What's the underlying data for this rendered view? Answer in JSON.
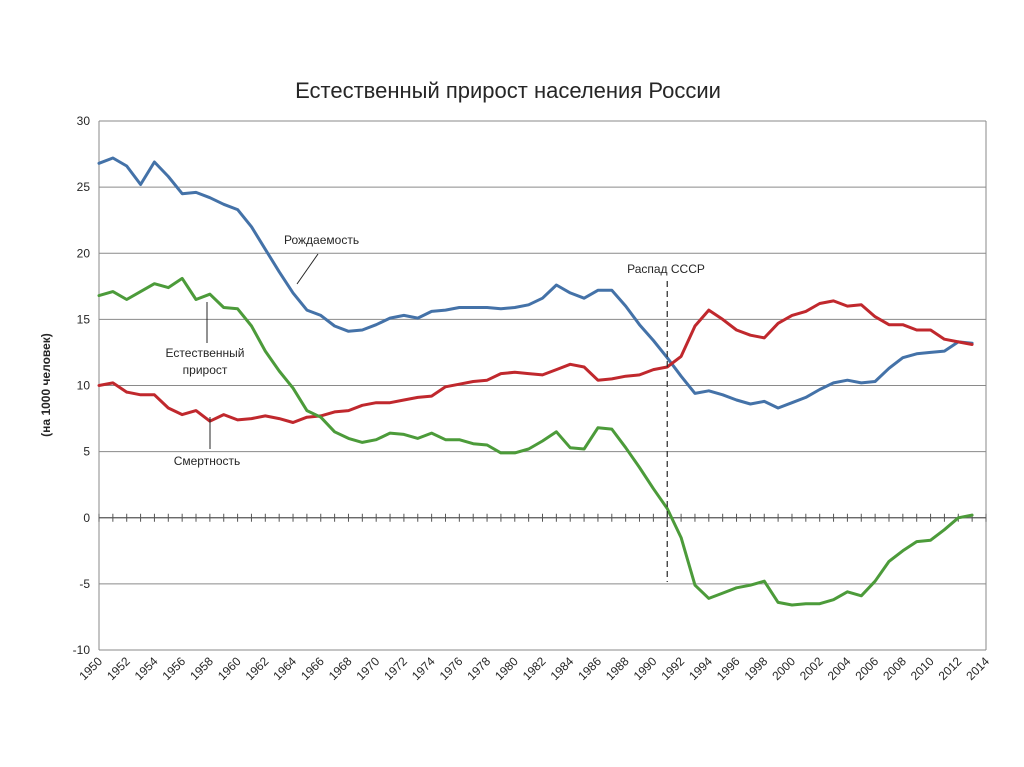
{
  "chart_data": {
    "type": "line",
    "title": "Естественный прирост населения России",
    "ylabel": "(на 1000 человек)",
    "xlabel": "",
    "xlim": [
      1950,
      2014
    ],
    "ylim": [
      -10,
      30
    ],
    "yticks": [
      30,
      25,
      20,
      15,
      10,
      5,
      0,
      -5,
      -10
    ],
    "xticks": [
      "1950",
      "1952",
      "1954",
      "1956",
      "1958",
      "1960",
      "1962",
      "1964",
      "1966",
      "1968",
      "1970",
      "1972",
      "1974",
      "1976",
      "1978",
      "1980",
      "1982",
      "1984",
      "1986",
      "1988",
      "1990",
      "1992",
      "1994",
      "1996",
      "1998",
      "2000",
      "2002",
      "2004",
      "2006",
      "2008",
      "2010",
      "2012",
      "2014"
    ],
    "grid": true,
    "series": [
      {
        "name": "Рождаемость",
        "color": "#4472a8",
        "x": [
          1950,
          1951,
          1952,
          1953,
          1954,
          1955,
          1956,
          1957,
          1958,
          1959,
          1960,
          1961,
          1962,
          1963,
          1964,
          1965,
          1966,
          1967,
          1968,
          1969,
          1970,
          1971,
          1972,
          1973,
          1974,
          1975,
          1976,
          1977,
          1978,
          1979,
          1980,
          1981,
          1982,
          1983,
          1984,
          1985,
          1986,
          1987,
          1988,
          1989,
          1990,
          1991,
          1992,
          1993,
          1994,
          1995,
          1996,
          1997,
          1998,
          1999,
          2000,
          2001,
          2002,
          2003,
          2004,
          2005,
          2006,
          2007,
          2008,
          2009,
          2010,
          2011,
          2012,
          2013
        ],
        "values": [
          26.8,
          27.2,
          26.6,
          25.2,
          26.9,
          25.8,
          24.5,
          24.6,
          24.2,
          23.7,
          23.3,
          22.0,
          20.3,
          18.6,
          17.0,
          15.7,
          15.3,
          14.5,
          14.1,
          14.2,
          14.6,
          15.1,
          15.3,
          15.1,
          15.6,
          15.7,
          15.9,
          15.9,
          15.9,
          15.8,
          15.9,
          16.1,
          16.6,
          17.6,
          17.0,
          16.6,
          17.2,
          17.2,
          16.0,
          14.6,
          13.4,
          12.1,
          10.7,
          9.4,
          9.6,
          9.3,
          8.9,
          8.6,
          8.8,
          8.3,
          8.7,
          9.1,
          9.7,
          10.2,
          10.4,
          10.2,
          10.3,
          11.3,
          12.1,
          12.4,
          12.5,
          12.6,
          13.3,
          13.2
        ]
      },
      {
        "name": "Смертность",
        "color": "#c0282d",
        "x": [
          1950,
          1951,
          1952,
          1953,
          1954,
          1955,
          1956,
          1957,
          1958,
          1959,
          1960,
          1961,
          1962,
          1963,
          1964,
          1965,
          1966,
          1967,
          1968,
          1969,
          1970,
          1971,
          1972,
          1973,
          1974,
          1975,
          1976,
          1977,
          1978,
          1979,
          1980,
          1981,
          1982,
          1983,
          1984,
          1985,
          1986,
          1987,
          1988,
          1989,
          1990,
          1991,
          1992,
          1993,
          1994,
          1995,
          1996,
          1997,
          1998,
          1999,
          2000,
          2001,
          2002,
          2003,
          2004,
          2005,
          2006,
          2007,
          2008,
          2009,
          2010,
          2011,
          2012,
          2013
        ],
        "values": [
          10.0,
          10.2,
          9.5,
          9.3,
          9.3,
          8.3,
          7.8,
          8.1,
          7.3,
          7.8,
          7.4,
          7.5,
          7.7,
          7.5,
          7.2,
          7.6,
          7.7,
          8.0,
          8.1,
          8.5,
          8.7,
          8.7,
          8.9,
          9.1,
          9.2,
          9.9,
          10.1,
          10.3,
          10.4,
          10.9,
          11.0,
          10.9,
          10.8,
          11.2,
          11.6,
          11.4,
          10.4,
          10.5,
          10.7,
          10.8,
          11.2,
          11.4,
          12.2,
          14.5,
          15.7,
          15.0,
          14.2,
          13.8,
          13.6,
          14.7,
          15.3,
          15.6,
          16.2,
          16.4,
          16.0,
          16.1,
          15.2,
          14.6,
          14.6,
          14.2,
          14.2,
          13.5,
          13.3,
          13.1
        ]
      },
      {
        "name": "Естественный прирост",
        "color": "#4c9b3a",
        "x": [
          1950,
          1951,
          1952,
          1953,
          1954,
          1955,
          1956,
          1957,
          1958,
          1959,
          1960,
          1961,
          1962,
          1963,
          1964,
          1965,
          1966,
          1967,
          1968,
          1969,
          1970,
          1971,
          1972,
          1973,
          1974,
          1975,
          1976,
          1977,
          1978,
          1979,
          1980,
          1981,
          1982,
          1983,
          1984,
          1985,
          1986,
          1987,
          1988,
          1989,
          1990,
          1991,
          1992,
          1993,
          1994,
          1995,
          1996,
          1997,
          1998,
          1999,
          2000,
          2001,
          2002,
          2003,
          2004,
          2005,
          2006,
          2007,
          2008,
          2009,
          2010,
          2011,
          2012,
          2013
        ],
        "values": [
          16.8,
          17.1,
          16.5,
          17.1,
          17.7,
          17.4,
          18.1,
          16.5,
          16.9,
          15.9,
          15.8,
          14.5,
          12.6,
          11.1,
          9.8,
          8.1,
          7.6,
          6.5,
          6.0,
          5.7,
          5.9,
          6.4,
          6.3,
          6.0,
          6.4,
          5.9,
          5.9,
          5.6,
          5.5,
          4.9,
          4.9,
          5.2,
          5.8,
          6.5,
          5.3,
          5.2,
          6.8,
          6.7,
          5.3,
          3.8,
          2.2,
          0.7,
          -1.5,
          -5.1,
          -6.1,
          -5.7,
          -5.3,
          -5.1,
          -4.8,
          -6.4,
          -6.6,
          -6.5,
          -6.5,
          -6.2,
          -5.6,
          -5.9,
          -4.8,
          -3.3,
          -2.5,
          -1.8,
          -1.7,
          -0.9,
          0.0,
          0.2
        ]
      }
    ],
    "annotations": {
      "birth_label": "Рождаемость",
      "natural_line1": "Естественный",
      "natural_line2": "прирост",
      "death_label": "Смертность",
      "event_label": "Распад СССР",
      "event_year": 1991
    }
  }
}
